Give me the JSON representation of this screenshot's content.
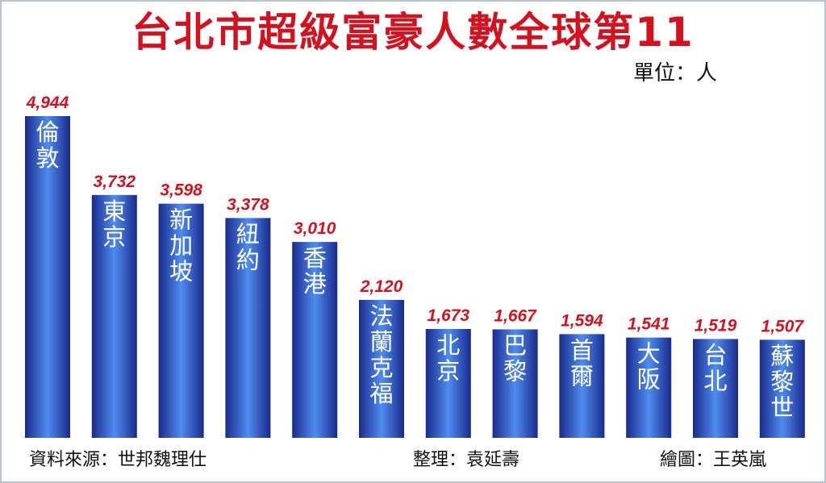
{
  "title": "台北市超級富豪人數全球第11",
  "unit_label": "單位：人",
  "footer": {
    "source": "資料來源：世邦魏理仕",
    "compiler": "整理：袁延壽",
    "artist": "繪圖：王英嵐"
  },
  "colors": {
    "title": "#d4121f",
    "value_label": "#d4121f",
    "bar_dark": "#1a2a8c",
    "bar_light": "#4f8cf0",
    "city_label": "#ffffff",
    "city_label_outside": "#1a8fd6"
  },
  "chart_data": {
    "type": "bar",
    "categories": [
      "倫敦",
      "東京",
      "新加坡",
      "紐約",
      "香港",
      "法蘭克福",
      "北京",
      "巴黎",
      "首爾",
      "大阪",
      "台北",
      "蘇黎世"
    ],
    "values": [
      4944,
      3732,
      3598,
      3378,
      3010,
      2120,
      1673,
      1667,
      1594,
      1541,
      1519,
      1507
    ],
    "value_labels": [
      "4,944",
      "3,732",
      "3,598",
      "3,378",
      "3,010",
      "2,120",
      "1,673",
      "1,667",
      "1,594",
      "1,541",
      "1,519",
      "1,507"
    ],
    "title": "台北市超級富豪人數全球第11",
    "unit": "單位：人",
    "xlabel": "",
    "ylabel": "",
    "grid": false,
    "legend": "none"
  }
}
